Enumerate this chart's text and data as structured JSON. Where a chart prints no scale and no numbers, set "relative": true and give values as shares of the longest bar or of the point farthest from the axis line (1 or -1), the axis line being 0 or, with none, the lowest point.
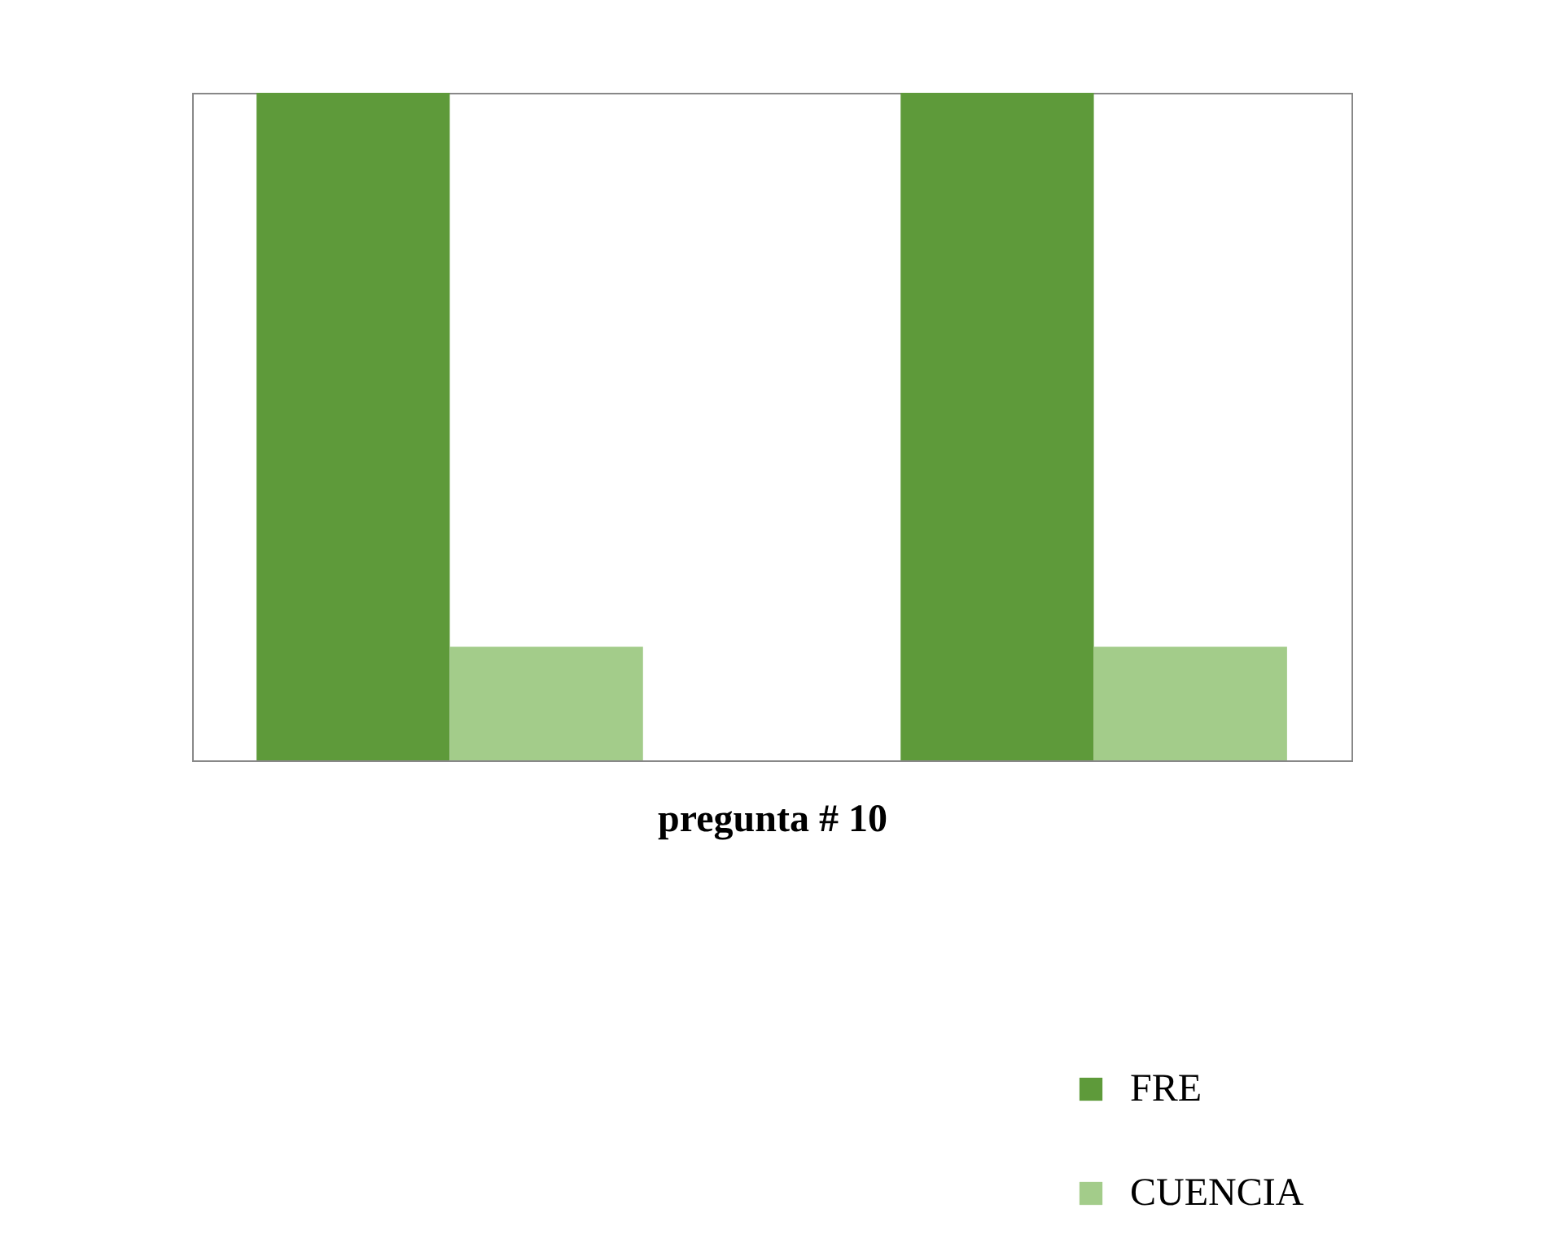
{
  "chart_data": {
    "type": "bar",
    "title": "pregunta # 10",
    "relative": true,
    "categories": [
      null,
      null
    ],
    "legend": "bottom right",
    "series": [
      {
        "name": "FRE",
        "color": "#5e9a3a",
        "values": [
          1,
          1
        ]
      },
      {
        "name": "CUENCIA",
        "color": "#a3cc8a",
        "values": [
          0.17,
          0.17
        ]
      }
    ]
  }
}
